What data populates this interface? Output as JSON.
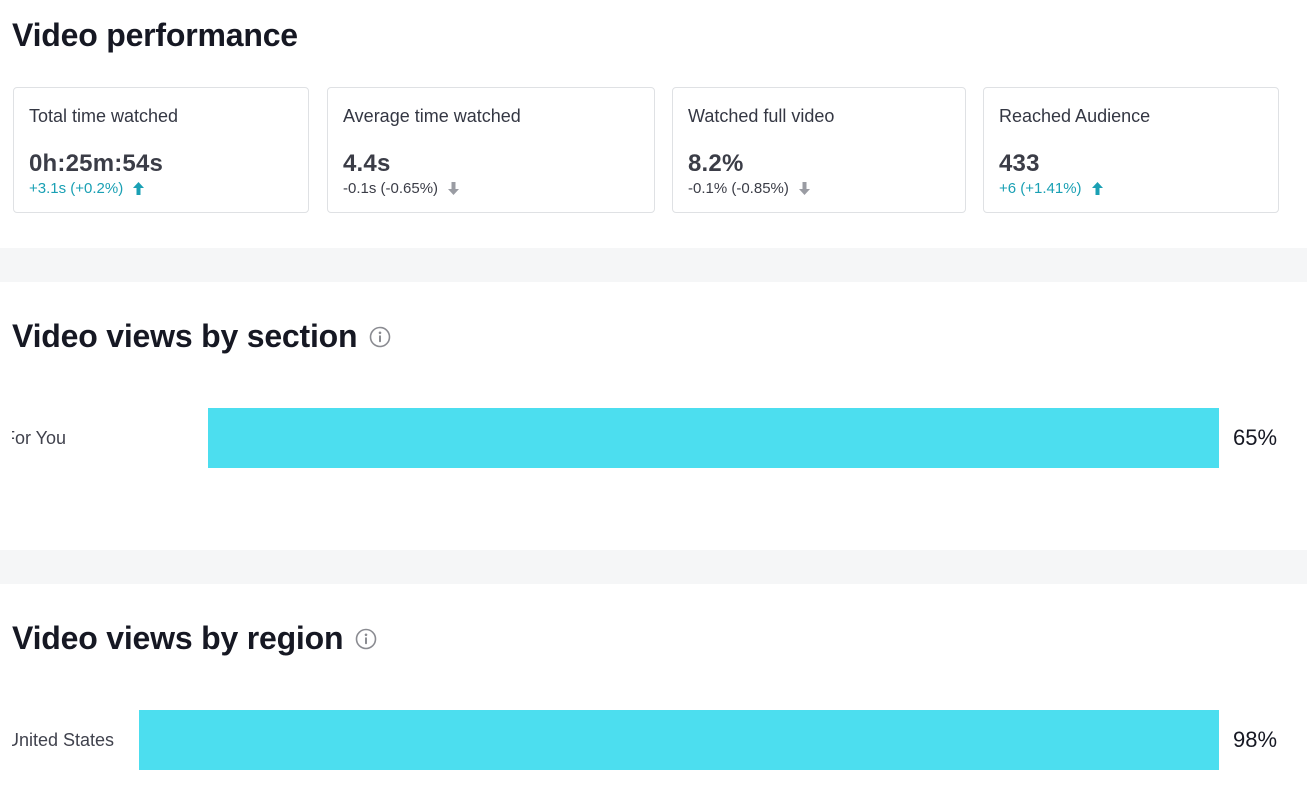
{
  "performance": {
    "title": "Video performance",
    "cards": [
      {
        "label": "Total time watched",
        "value": "0h:25m:54s",
        "delta": "+3.1s (+0.2%)",
        "trend": "up"
      },
      {
        "label": "Average time watched",
        "value": "4.4s",
        "delta": "-0.1s (-0.65%)",
        "trend": "down"
      },
      {
        "label": "Watched full video",
        "value": "8.2%",
        "delta": "-0.1% (-0.85%)",
        "trend": "down"
      },
      {
        "label": "Reached Audience",
        "value": "433",
        "delta": "+6 (+1.41%)",
        "trend": "up"
      }
    ]
  },
  "by_section": {
    "title": "Video views by section",
    "icon": "info-icon",
    "bars": [
      {
        "label": "For You",
        "value": 65,
        "display": "65%"
      }
    ]
  },
  "by_region": {
    "title": "Video views by region",
    "icon": "info-icon",
    "bars": [
      {
        "label": "United States",
        "value": 98,
        "display": "98%"
      }
    ]
  },
  "colors": {
    "bar": "#4cdeef",
    "trend_up": "#1aa0b4",
    "trend_down": "#9a9ca3",
    "section_divider": "#f5f6f7"
  }
}
